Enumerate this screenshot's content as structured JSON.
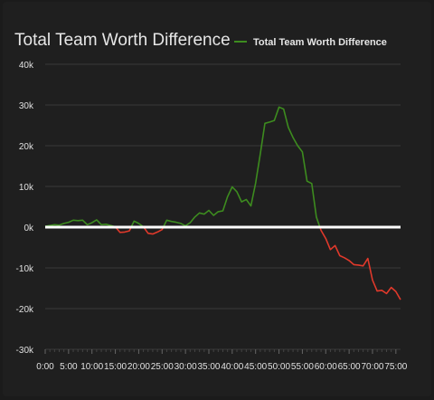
{
  "chart_data": {
    "type": "line",
    "title": "Total Team Worth Difference",
    "xlabel": "",
    "ylabel": "",
    "legend": {
      "position": "top-right",
      "entries": [
        "Total Team Worth Difference"
      ]
    },
    "x_tick_labels": [
      "0:00",
      "5:00",
      "10:00",
      "15:00",
      "20:00",
      "25:00",
      "30:00",
      "35:00",
      "40:00",
      "45:00",
      "50:00",
      "55:00",
      "60:00",
      "65:00",
      "70:00",
      "75:00"
    ],
    "y_tick_labels": [
      "40k",
      "30k",
      "20k",
      "10k",
      "0k",
      "-10k",
      "-20k",
      "-30k"
    ],
    "xlim": [
      0,
      76
    ],
    "ylim": [
      -30000,
      40000
    ],
    "grid": true,
    "zero_line": true,
    "series": [
      {
        "name": "Total Team Worth Difference",
        "positive_color": "#3d8c1f",
        "negative_color": "#e0392b",
        "x": [
          0,
          1,
          2,
          3,
          4,
          5,
          6,
          7,
          8,
          9,
          10,
          11,
          12,
          13,
          14,
          15,
          16,
          17,
          18,
          19,
          20,
          21,
          22,
          23,
          24,
          25,
          26,
          27,
          28,
          29,
          30,
          31,
          32,
          33,
          34,
          35,
          36,
          37,
          38,
          39,
          40,
          41,
          42,
          43,
          44,
          45,
          46,
          47,
          48,
          49,
          50,
          51,
          52,
          53,
          54,
          55,
          56,
          57,
          58,
          59,
          60,
          61,
          62,
          63,
          64,
          65,
          66,
          67,
          68,
          69,
          70,
          71,
          72,
          73,
          74,
          75,
          76
        ],
        "y": [
          200,
          400,
          600,
          500,
          900,
          1200,
          1700,
          1600,
          1700,
          600,
          1100,
          1800,
          600,
          700,
          400,
          100,
          -1300,
          -1200,
          -900,
          1500,
          900,
          100,
          -1500,
          -1700,
          -1200,
          -600,
          1700,
          1400,
          1200,
          900,
          300,
          1100,
          2500,
          3500,
          3200,
          4100,
          2900,
          3800,
          4000,
          7500,
          9900,
          8700,
          6200,
          6800,
          5200,
          10800,
          18000,
          25500,
          25800,
          26200,
          29500,
          29000,
          24500,
          22000,
          20000,
          18500,
          11300,
          10700,
          2500,
          -800,
          -2800,
          -5500,
          -4500,
          -7000,
          -7500,
          -8200,
          -9200,
          -9300,
          -9500,
          -7700,
          -13000,
          -15700,
          -15500,
          -16300,
          -14800,
          -15800,
          -17800
        ]
      }
    ]
  }
}
